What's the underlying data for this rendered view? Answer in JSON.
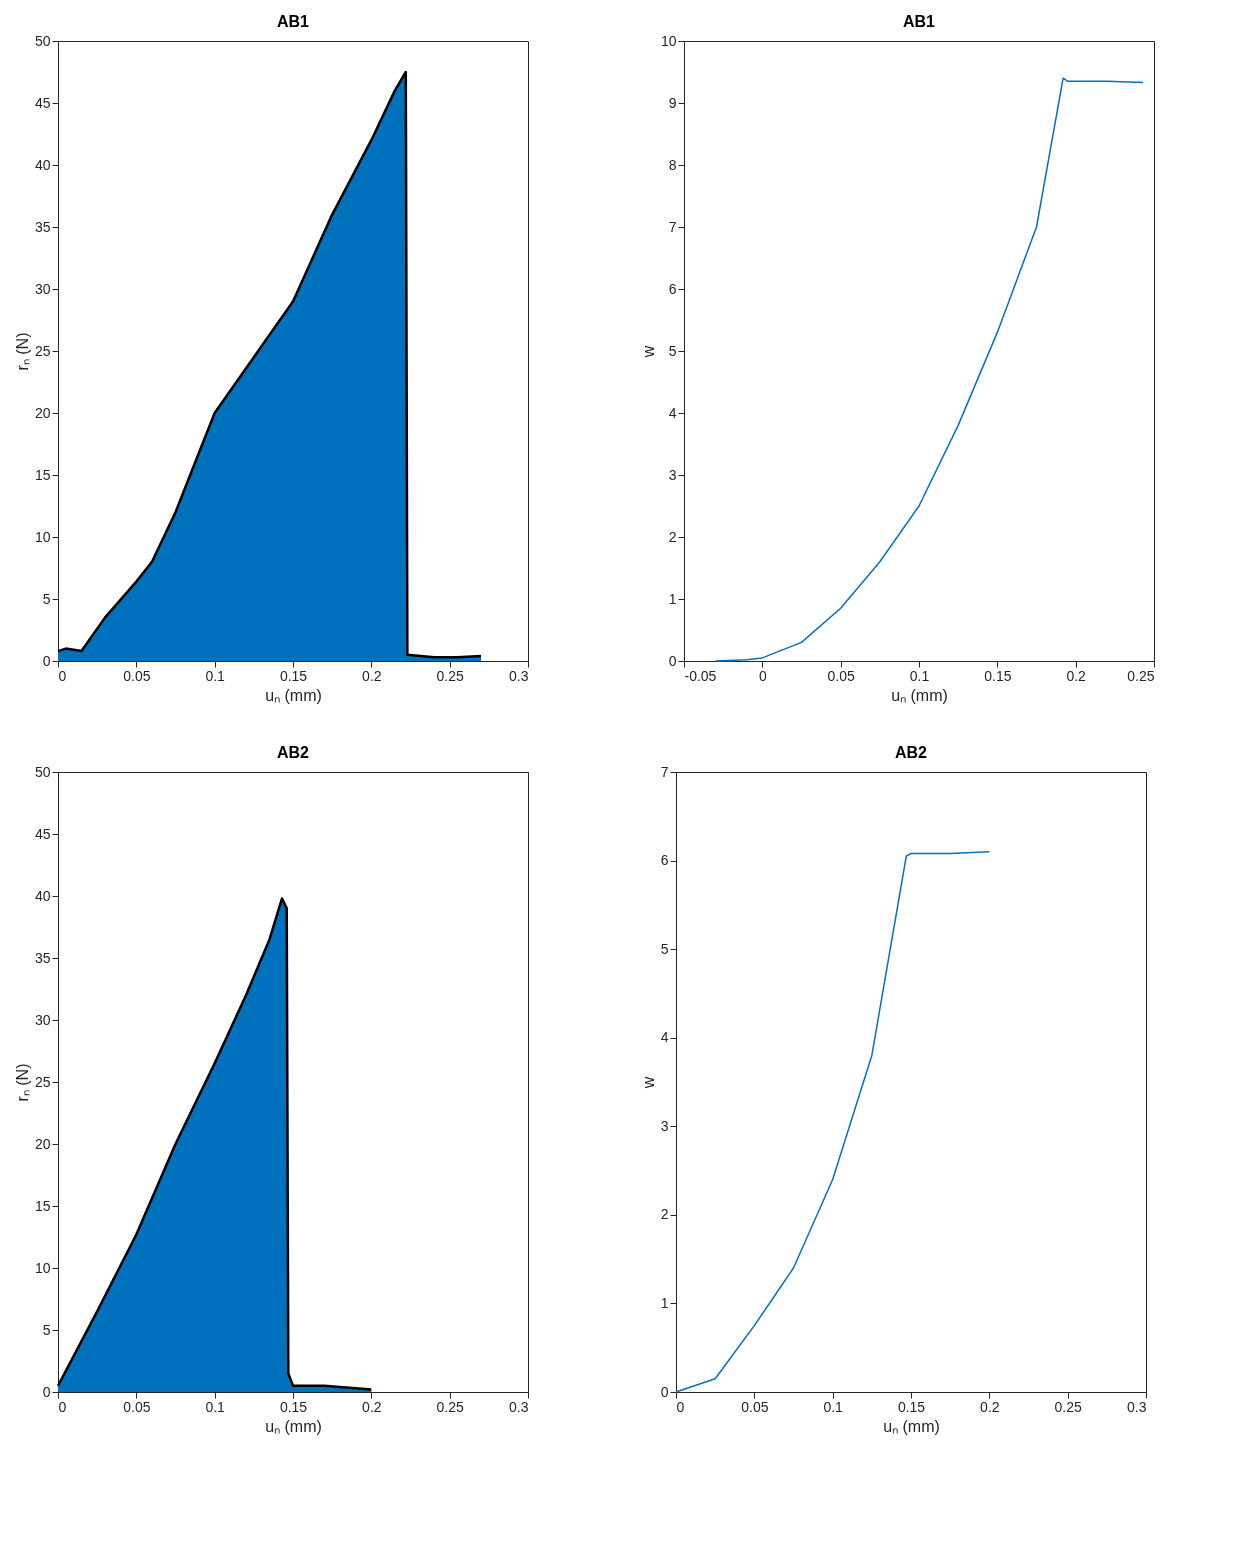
{
  "chart_data": [
    {
      "type": "area",
      "title": "AB1",
      "xlabel": "uₙ (mm)",
      "ylabel": "rₙ (N)",
      "x": [
        0,
        0.005,
        0.015,
        0.03,
        0.05,
        0.06,
        0.075,
        0.1,
        0.125,
        0.15,
        0.175,
        0.2,
        0.215,
        0.222,
        0.223,
        0.24,
        0.255,
        0.27
      ],
      "series": [
        {
          "type": "area",
          "color": "#0072bd",
          "values": [
            0.8,
            1,
            0.8,
            3.5,
            6.4,
            8,
            12,
            20,
            24.5,
            29,
            36,
            42,
            46,
            47.5,
            0.5,
            0.3,
            0.3,
            0.4
          ]
        }
      ],
      "xlim": [
        0,
        0.3
      ],
      "xticks": [
        0,
        0.05,
        0.1,
        0.15,
        0.2,
        0.25,
        0.3
      ],
      "ylim": [
        0,
        50
      ],
      "yticks": [
        0,
        5,
        10,
        15,
        20,
        25,
        30,
        35,
        40,
        45,
        50
      ],
      "grid": false
    },
    {
      "type": "line",
      "title": "AB1",
      "xlabel": "uₙ (mm)",
      "ylabel": "w",
      "x": [
        -0.03,
        -0.01,
        0,
        0.025,
        0.05,
        0.075,
        0.1,
        0.125,
        0.15,
        0.175,
        0.192,
        0.195,
        0.22,
        0.243
      ],
      "series": [
        {
          "color": "#0072bd",
          "values": [
            0,
            0.02,
            0.05,
            0.3,
            0.85,
            1.6,
            2.5,
            3.8,
            5.3,
            7,
            9.4,
            9.35,
            9.35,
            9.33
          ]
        }
      ],
      "xlim": [
        -0.05,
        0.25
      ],
      "xticks": [
        -0.05,
        0,
        0.05,
        0.1,
        0.15,
        0.2,
        0.25
      ],
      "ylim": [
        0,
        10
      ],
      "yticks": [
        0,
        1,
        2,
        3,
        4,
        5,
        6,
        7,
        8,
        9,
        10
      ],
      "grid": false
    },
    {
      "type": "area",
      "title": "AB2",
      "xlabel": "uₙ (mm)",
      "ylabel": "rₙ (N)",
      "x": [
        0,
        0.025,
        0.05,
        0.075,
        0.1,
        0.12,
        0.135,
        0.143,
        0.146,
        0.147,
        0.15,
        0.17,
        0.2
      ],
      "series": [
        {
          "type": "area",
          "color": "#0072bd",
          "values": [
            0.5,
            6.5,
            12.7,
            20,
            26.5,
            32,
            36.5,
            39.8,
            39,
            1.5,
            0.5,
            0.5,
            0.2
          ]
        }
      ],
      "xlim": [
        0,
        0.3
      ],
      "xticks": [
        0,
        0.05,
        0.1,
        0.15,
        0.2,
        0.25,
        0.3
      ],
      "ylim": [
        0,
        50
      ],
      "yticks": [
        0,
        5,
        10,
        15,
        20,
        25,
        30,
        35,
        40,
        45,
        50
      ],
      "grid": false
    },
    {
      "type": "line",
      "title": "AB2",
      "xlabel": "uₙ (mm)",
      "ylabel": "w",
      "x": [
        0,
        0.025,
        0.05,
        0.075,
        0.1,
        0.125,
        0.147,
        0.15,
        0.175,
        0.2
      ],
      "series": [
        {
          "color": "#0072bd",
          "values": [
            0,
            0.15,
            0.75,
            1.4,
            2.4,
            3.8,
            6.05,
            6.08,
            6.08,
            6.1
          ]
        }
      ],
      "xlim": [
        0,
        0.3
      ],
      "xticks": [
        0,
        0.05,
        0.1,
        0.15,
        0.2,
        0.25,
        0.3
      ],
      "ylim": [
        0,
        7
      ],
      "yticks": [
        0,
        1,
        2,
        3,
        4,
        5,
        6,
        7
      ],
      "grid": false
    }
  ]
}
